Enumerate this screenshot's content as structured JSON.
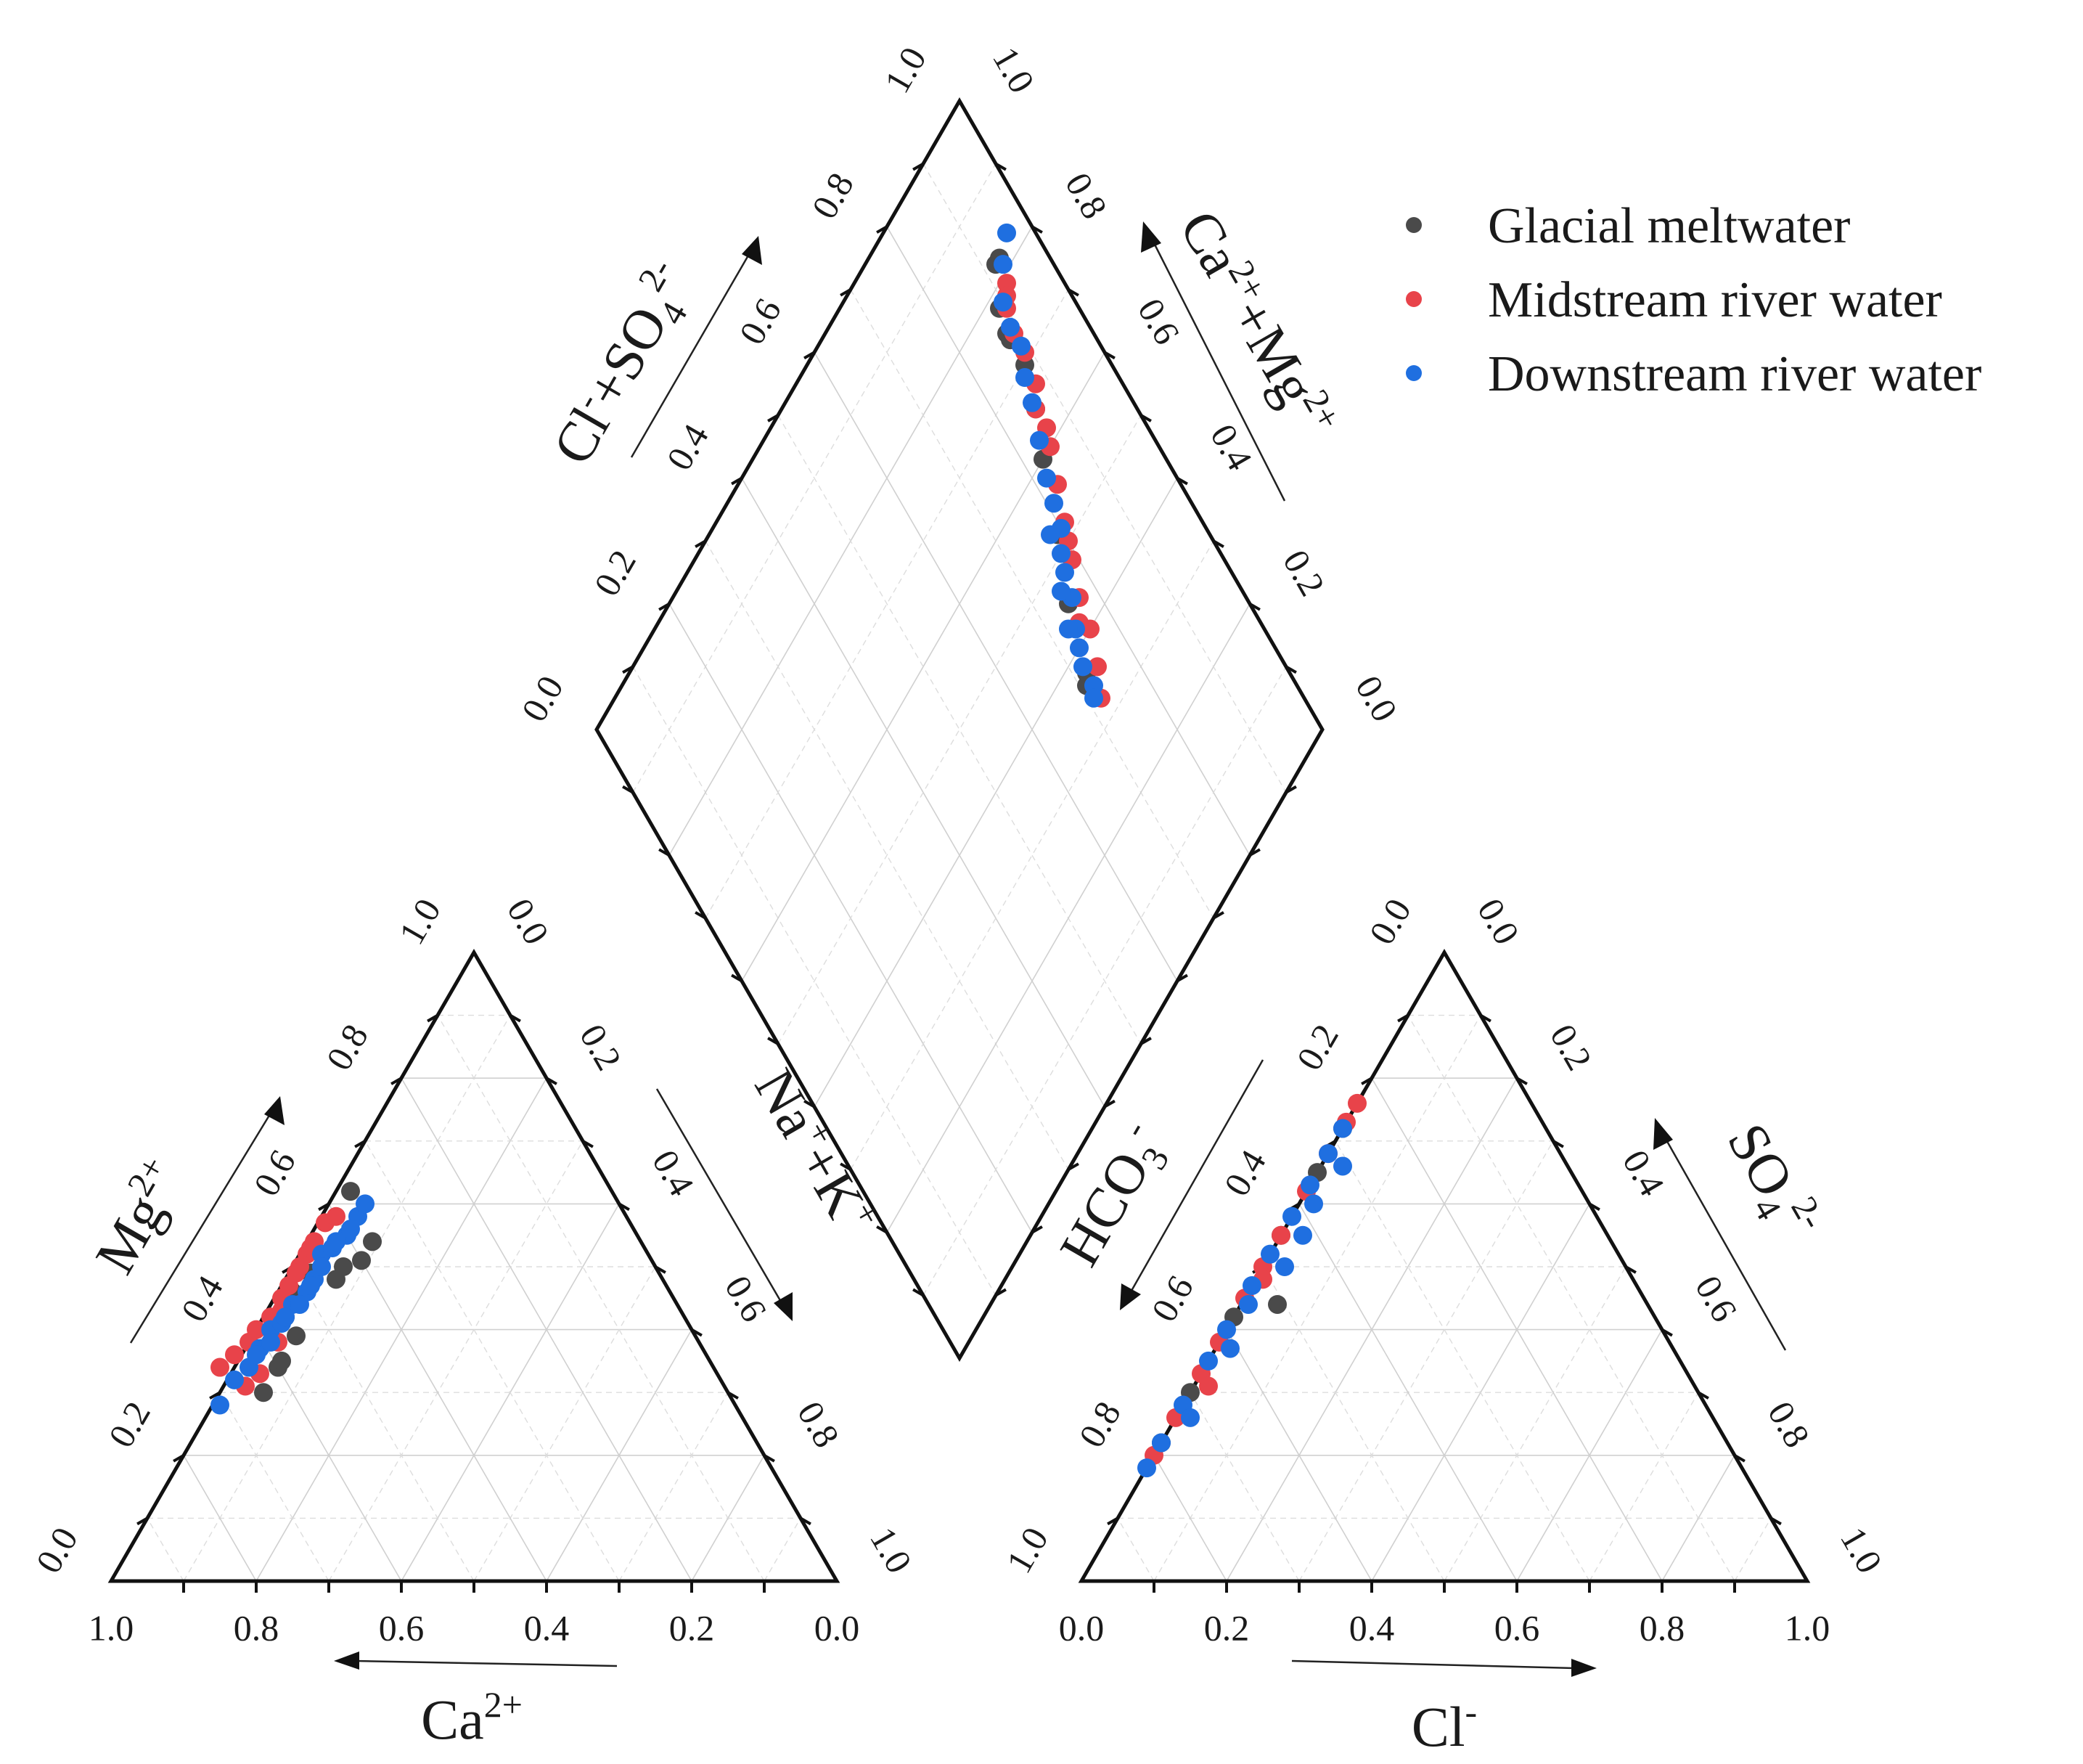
{
  "chart_data": {
    "type": "scatter",
    "subtype": "piper-diagram",
    "legend": {
      "placement": "top-right",
      "entries": [
        {
          "name": "Glacial meltwater",
          "color": "#4a4a4a"
        },
        {
          "name": "Midstream river water",
          "color": "#e8434a"
        },
        {
          "name": "Downstream river water",
          "color": "#1f6fe0"
        }
      ]
    },
    "cation_triangle": {
      "axes": {
        "ca": {
          "title_base": "Ca",
          "title_sup": "2+",
          "direction": "left",
          "range": [
            0,
            1
          ]
        },
        "mg": {
          "title_base": "Mg",
          "title_sup": "2+",
          "direction": "up",
          "range": [
            0,
            1
          ]
        },
        "nak": {
          "title_parts": [
            "Na",
            "+",
            "+K",
            "+"
          ],
          "direction": "down-right",
          "range": [
            0,
            1
          ]
        }
      },
      "bottom_ticks": [
        "1.0",
        "0.8",
        "0.6",
        "0.4",
        "0.2",
        "0.0"
      ],
      "left_ticks": [
        "0.0",
        "0.2",
        "0.4",
        "0.6",
        "0.8",
        "1.0"
      ],
      "right_ticks": [
        "0.0",
        "0.2",
        "0.4",
        "0.6",
        "0.8",
        "1.0"
      ],
      "series": [
        {
          "name": "Glacial meltwater",
          "points": [
            [
              0.64,
              0.3
            ],
            [
              0.6,
              0.34
            ],
            [
              0.59,
              0.35
            ],
            [
              0.55,
              0.39
            ],
            [
              0.45,
              0.48
            ],
            [
              0.4,
              0.51
            ],
            [
              0.37,
              0.54
            ],
            [
              0.36,
              0.62
            ],
            [
              0.55,
              0.42
            ],
            [
              0.52,
              0.46
            ],
            [
              0.48,
              0.49
            ],
            [
              0.43,
              0.5
            ]
          ]
        },
        {
          "name": "Midstream river water",
          "points": [
            [
              0.68,
              0.34
            ],
            [
              0.65,
              0.36
            ],
            [
              0.62,
              0.38
            ],
            [
              0.6,
              0.4
            ],
            [
              0.57,
              0.42
            ],
            [
              0.54,
              0.45
            ],
            [
              0.52,
              0.47
            ],
            [
              0.49,
              0.5
            ],
            [
              0.47,
              0.52
            ],
            [
              0.45,
              0.54
            ],
            [
              0.42,
              0.57
            ],
            [
              0.4,
              0.58
            ],
            [
              0.66,
              0.31
            ],
            [
              0.63,
              0.33
            ],
            [
              0.58,
              0.38
            ],
            [
              0.55,
              0.43
            ],
            [
              0.5,
              0.49
            ],
            [
              0.46,
              0.53
            ]
          ]
        },
        {
          "name": "Downstream river water",
          "points": [
            [
              0.71,
              0.28
            ],
            [
              0.67,
              0.32
            ],
            [
              0.64,
              0.34
            ],
            [
              0.61,
              0.37
            ],
            [
              0.58,
              0.4
            ],
            [
              0.56,
              0.41
            ],
            [
              0.53,
              0.44
            ],
            [
              0.5,
              0.46
            ],
            [
              0.48,
              0.48
            ],
            [
              0.45,
              0.52
            ],
            [
              0.43,
              0.53
            ],
            [
              0.4,
              0.55
            ],
            [
              0.37,
              0.58
            ],
            [
              0.35,
              0.6
            ],
            [
              0.62,
              0.36
            ],
            [
              0.59,
              0.38
            ],
            [
              0.55,
              0.42
            ],
            [
              0.52,
              0.44
            ],
            [
              0.49,
              0.47
            ],
            [
              0.46,
              0.5
            ],
            [
              0.42,
              0.54
            ],
            [
              0.39,
              0.56
            ]
          ]
        }
      ]
    },
    "anion_triangle": {
      "axes": {
        "cl": {
          "title_base": "Cl",
          "title_sup": "-",
          "direction": "right",
          "range": [
            0,
            1
          ]
        },
        "so4": {
          "title_base": "SO",
          "title_sub": "4",
          "title_sup": "2-",
          "direction": "up",
          "range": [
            0,
            1
          ]
        },
        "hco3": {
          "title_base": "HCO",
          "title_sub": "3",
          "title_sup": "-",
          "direction": "down-left",
          "range": [
            0,
            1
          ]
        }
      },
      "bottom_ticks": [
        "0.0",
        "0.2",
        "0.4",
        "0.6",
        "0.8",
        "1.0"
      ],
      "left_ticks": [
        "1.0",
        "0.8",
        "0.6",
        "0.4",
        "0.2",
        "0.0"
      ],
      "right_ticks": [
        "0.0",
        "0.2",
        "0.4",
        "0.6",
        "0.8",
        "1.0"
      ],
      "series": [
        {
          "name": "Glacial meltwater",
          "points": [
            [
              0.0,
              0.22
            ],
            [
              0.0,
              0.3
            ],
            [
              0.0,
              0.42
            ],
            [
              0.0,
              0.55
            ],
            [
              0.05,
              0.44
            ],
            [
              0.0,
              0.65
            ],
            [
              0.0,
              0.72
            ]
          ]
        },
        {
          "name": "Midstream river water",
          "points": [
            [
              0.0,
              0.2
            ],
            [
              0.0,
              0.26
            ],
            [
              0.0,
              0.33
            ],
            [
              0.0,
              0.38
            ],
            [
              0.0,
              0.45
            ],
            [
              0.0,
              0.5
            ],
            [
              0.0,
              0.55
            ],
            [
              0.0,
              0.62
            ],
            [
              0.0,
              0.68
            ],
            [
              0.0,
              0.73
            ],
            [
              0.0,
              0.76
            ],
            [
              0.02,
              0.31
            ],
            [
              0.01,
              0.48
            ]
          ]
        },
        {
          "name": "Downstream river water",
          "points": [
            [
              0.0,
              0.18
            ],
            [
              0.0,
              0.22
            ],
            [
              0.0,
              0.28
            ],
            [
              0.0,
              0.35
            ],
            [
              0.0,
              0.4
            ],
            [
              0.0,
              0.47
            ],
            [
              0.0,
              0.52
            ],
            [
              0.0,
              0.58
            ],
            [
              0.0,
              0.63
            ],
            [
              0.0,
              0.68
            ],
            [
              0.0,
              0.72
            ],
            [
              0.02,
              0.26
            ],
            [
              0.02,
              0.37
            ],
            [
              0.03,
              0.5
            ],
            [
              0.02,
              0.6
            ],
            [
              0.03,
              0.66
            ],
            [
              0.01,
              0.44
            ],
            [
              0.03,
              0.55
            ]
          ]
        }
      ]
    },
    "diamond": {
      "axes": {
        "cl_so4": {
          "title_parts": [
            "Cl",
            "-",
            "+SO",
            "4",
            "2-"
          ],
          "direction": "up",
          "range": [
            0,
            1
          ]
        },
        "ca_mg": {
          "title_parts": [
            "Ca",
            "2+",
            "+Mg",
            "2+"
          ],
          "direction": "up",
          "range": [
            0,
            1
          ]
        }
      },
      "left_ticks": [
        "0.0",
        "0.2",
        "0.4",
        "0.6",
        "0.8",
        "1.0"
      ],
      "right_ticks": [
        "0.0",
        "0.2",
        "0.4",
        "0.6",
        "0.8",
        "1.0"
      ],
      "series": [
        {
          "name": "Glacial meltwater",
          "points": [
            [
              0.18,
              0.93
            ],
            [
              0.18,
              0.92
            ],
            [
              0.22,
              0.89
            ],
            [
              0.25,
              0.88
            ],
            [
              0.26,
              0.88
            ],
            [
              0.3,
              0.88
            ],
            [
              0.35,
              0.86
            ],
            [
              0.4,
              0.83
            ],
            [
              0.48,
              0.79
            ],
            [
              0.55,
              0.75
            ],
            [
              0.63,
              0.72
            ],
            [
              0.64,
              0.71
            ]
          ]
        },
        {
          "name": "Midstream river water",
          "points": [
            [
              0.21,
              0.92
            ],
            [
              0.23,
              0.9
            ],
            [
              0.26,
              0.89
            ],
            [
              0.29,
              0.89
            ],
            [
              0.33,
              0.88
            ],
            [
              0.35,
              0.86
            ],
            [
              0.4,
              0.85
            ],
            [
              0.44,
              0.83
            ],
            [
              0.48,
              0.81
            ],
            [
              0.52,
              0.79
            ],
            [
              0.56,
              0.77
            ],
            [
              0.6,
              0.76
            ],
            [
              0.64,
              0.74
            ],
            [
              0.67,
              0.72
            ],
            [
              0.22,
              0.91
            ],
            [
              0.38,
              0.86
            ],
            [
              0.5,
              0.8
            ],
            [
              0.58,
              0.75
            ]
          ]
        },
        {
          "name": "Downstream river water",
          "points": [
            [
              0.17,
              0.96
            ],
            [
              0.19,
              0.93
            ],
            [
              0.22,
              0.9
            ],
            [
              0.25,
              0.89
            ],
            [
              0.28,
              0.89
            ],
            [
              0.31,
              0.87
            ],
            [
              0.34,
              0.86
            ],
            [
              0.38,
              0.84
            ],
            [
              0.42,
              0.82
            ],
            [
              0.45,
              0.81
            ],
            [
              0.48,
              0.8
            ],
            [
              0.5,
              0.78
            ],
            [
              0.52,
              0.77
            ],
            [
              0.55,
              0.76
            ],
            [
              0.58,
              0.74
            ],
            [
              0.6,
              0.73
            ],
            [
              0.62,
              0.72
            ],
            [
              0.65,
              0.72
            ],
            [
              0.66,
              0.71
            ],
            [
              0.47,
              0.78
            ],
            [
              0.53,
              0.75
            ],
            [
              0.57,
              0.73
            ]
          ]
        }
      ]
    }
  }
}
